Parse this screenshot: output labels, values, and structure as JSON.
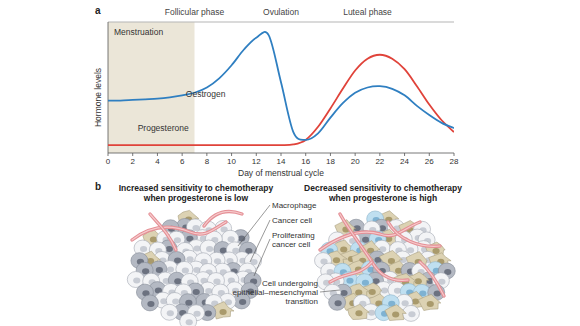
{
  "panel_labels": [
    "a",
    "b"
  ],
  "chart_data": {
    "type": "line",
    "x_label": "Day of menstrual cycle",
    "y_label": "Hormone levels",
    "x": [
      0,
      1,
      2,
      3,
      4,
      5,
      6,
      7,
      8,
      9,
      10,
      11,
      12,
      13,
      14,
      15,
      16,
      17,
      18,
      19,
      20,
      21,
      22,
      23,
      24,
      25,
      26,
      27,
      28
    ],
    "xlim": [
      0,
      28
    ],
    "xticks": [
      0,
      2,
      4,
      6,
      8,
      10,
      12,
      14,
      16,
      18,
      20,
      22,
      24,
      26,
      28
    ],
    "ylim": [
      0,
      10
    ],
    "tick_labels": "x",
    "shaded_period": {
      "label": "Menstruation",
      "start": 0,
      "end": 7
    },
    "phases": [
      {
        "label": "Follicular phase",
        "start": 0,
        "end": 14
      },
      {
        "label": "Ovulation",
        "start": 14,
        "end": 14
      },
      {
        "label": "Luteal phase",
        "start": 14,
        "end": 28
      }
    ],
    "series": [
      {
        "name": "Oestrogen",
        "color": "#2f7fc1",
        "values": [
          4.0,
          4.0,
          4.05,
          4.1,
          4.15,
          4.25,
          4.4,
          4.6,
          5.0,
          5.7,
          6.7,
          7.9,
          8.8,
          9.0,
          5.4,
          1.6,
          1.0,
          1.5,
          2.7,
          3.8,
          4.6,
          5.0,
          5.1,
          4.9,
          4.4,
          3.6,
          2.9,
          2.3,
          1.9
        ]
      },
      {
        "name": "Progesterone",
        "color": "#e0433a",
        "values": [
          0.6,
          0.6,
          0.6,
          0.6,
          0.6,
          0.6,
          0.6,
          0.6,
          0.6,
          0.6,
          0.6,
          0.6,
          0.6,
          0.6,
          0.6,
          0.65,
          1.0,
          2.0,
          3.4,
          4.9,
          6.3,
          7.2,
          7.5,
          7.2,
          6.4,
          5.1,
          3.7,
          2.5,
          1.6
        ]
      }
    ]
  },
  "illustration": {
    "left": {
      "heading": [
        "Increased sensitivity to chemotherapy",
        "when progesterone is low"
      ]
    },
    "right": {
      "heading": [
        "Decreased sensitivity to chemotherapy",
        "when progesterone is high"
      ]
    },
    "labels": {
      "macrophage": [
        "Macrophage"
      ],
      "cancer_cell": [
        "Cancer cell"
      ],
      "proliferating": [
        "Proliferating",
        "cancer cell"
      ],
      "emt": [
        "Cell undergoing",
        "epithelial–mesenchymal",
        "transition"
      ]
    }
  }
}
